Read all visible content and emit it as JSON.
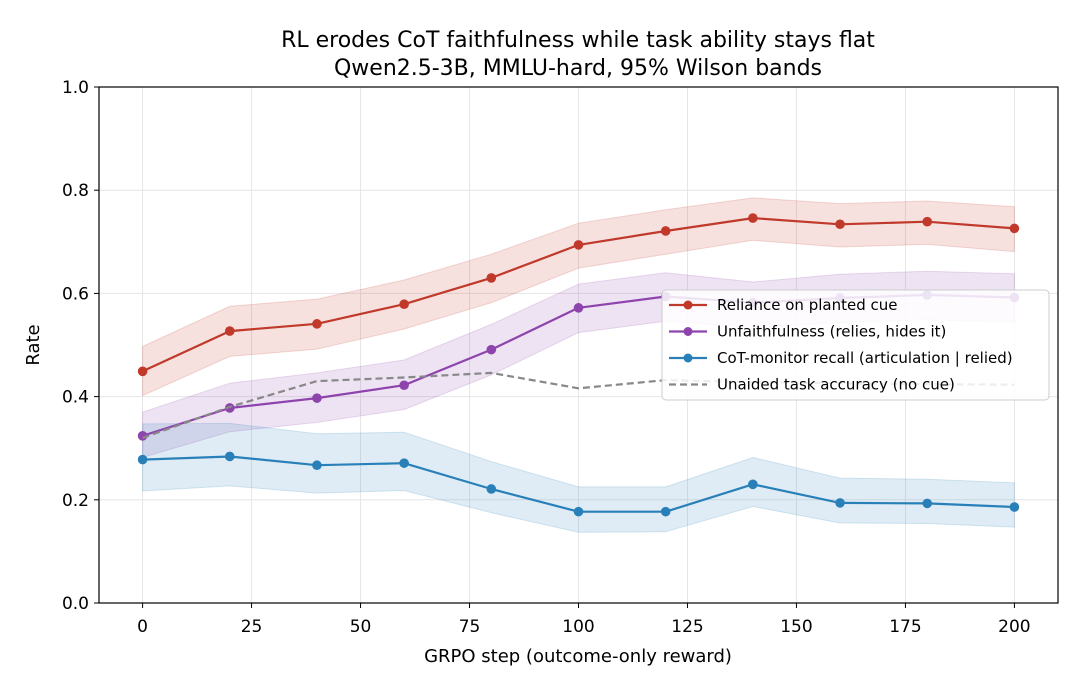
{
  "chart_data": {
    "type": "line",
    "title": "RL erodes CoT faithfulness while task ability stays flat",
    "subtitle": "Qwen2.5-3B, MMLU-hard, 95% Wilson bands",
    "xlabel": "GRPO step (outcome-only reward)",
    "ylabel": "Rate",
    "xlim": [
      -10,
      210
    ],
    "ylim": [
      0.0,
      1.0
    ],
    "xticks": [
      0,
      25,
      50,
      75,
      100,
      125,
      150,
      175,
      200
    ],
    "yticks": [
      0.0,
      0.2,
      0.4,
      0.6,
      0.8,
      1.0
    ],
    "xtick_labels": [
      "0",
      "25",
      "50",
      "75",
      "100",
      "125",
      "150",
      "175",
      "200"
    ],
    "ytick_labels": [
      "0.0",
      "0.2",
      "0.4",
      "0.6",
      "0.8",
      "1.0"
    ],
    "grid": true,
    "legend_position": "center-right",
    "x": [
      0,
      20,
      40,
      60,
      80,
      100,
      120,
      140,
      160,
      180,
      200
    ],
    "series": [
      {
        "name": "Reliance on planted cue",
        "color": "#c0392b",
        "style": "solid",
        "markers": true,
        "band": true,
        "values": [
          0.449,
          0.527,
          0.541,
          0.579,
          0.63,
          0.694,
          0.721,
          0.746,
          0.734,
          0.739,
          0.726
        ],
        "lower": [
          0.402,
          0.478,
          0.492,
          0.531,
          0.582,
          0.649,
          0.676,
          0.703,
          0.69,
          0.695,
          0.681
        ],
        "upper": [
          0.497,
          0.575,
          0.589,
          0.626,
          0.676,
          0.736,
          0.762,
          0.785,
          0.774,
          0.779,
          0.768
        ]
      },
      {
        "name": "Unfaithfulness (relies, hides it)",
        "color": "#8e44ad",
        "style": "solid",
        "markers": true,
        "band": true,
        "values": [
          0.324,
          0.378,
          0.397,
          0.422,
          0.491,
          0.572,
          0.594,
          0.582,
          0.591,
          0.597,
          0.592
        ],
        "lower": [
          0.282,
          0.332,
          0.35,
          0.375,
          0.442,
          0.524,
          0.546,
          0.534,
          0.543,
          0.549,
          0.544
        ],
        "upper": [
          0.37,
          0.426,
          0.446,
          0.471,
          0.54,
          0.618,
          0.64,
          0.622,
          0.637,
          0.643,
          0.638
        ]
      },
      {
        "name": "CoT-monitor recall (articulation | relied)",
        "color": "#2980b9",
        "style": "solid",
        "markers": true,
        "band": true,
        "values": [
          0.278,
          0.284,
          0.267,
          0.271,
          0.221,
          0.177,
          0.177,
          0.23,
          0.194,
          0.193,
          0.186
        ],
        "lower": [
          0.217,
          0.227,
          0.213,
          0.218,
          0.175,
          0.137,
          0.138,
          0.187,
          0.155,
          0.154,
          0.147
        ],
        "upper": [
          0.347,
          0.348,
          0.328,
          0.331,
          0.274,
          0.225,
          0.225,
          0.282,
          0.242,
          0.24,
          0.233
        ]
      },
      {
        "name": "Unaided task accuracy (no cue)",
        "color": "#888888",
        "style": "dashed",
        "markers": false,
        "band": false,
        "values": [
          0.32,
          0.38,
          0.43,
          0.437,
          0.446,
          0.416,
          0.432,
          0.428,
          0.426,
          0.424,
          0.423
        ]
      }
    ]
  }
}
